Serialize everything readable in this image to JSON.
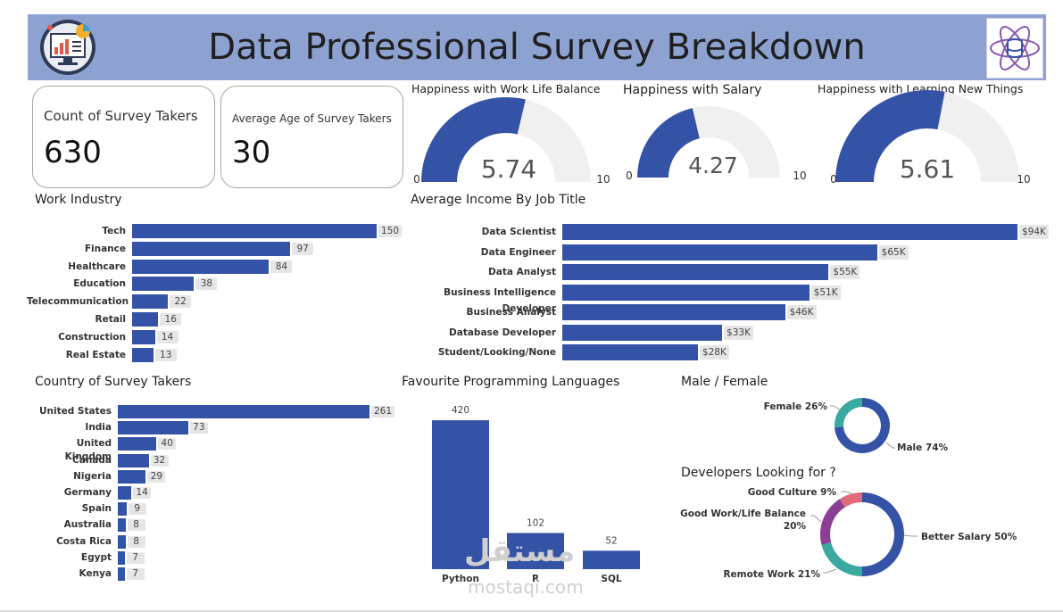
{
  "header": {
    "title": "Data Professional Survey Breakdown"
  },
  "kpis": {
    "count_label": "Count of Survey Takers",
    "count_value": "630",
    "age_label": "Average Age of Survey Takers",
    "age_value": "30"
  },
  "colors": {
    "bar": "#3452a6",
    "gauge_track": "#f0f0f0",
    "donut_teal": "#3aa99f",
    "donut_purple": "#8a3e96",
    "donut_pink": "#e06a7a",
    "header_bg": "#8ea2d2"
  },
  "gauges": [
    {
      "title": "Happiness with Work Life Balance",
      "value": 5.74,
      "value_label": "5.74",
      "min_label": "0",
      "max_label": "10",
      "min": 0,
      "max": 10
    },
    {
      "title": "Happiness with Salary",
      "value": 4.27,
      "value_label": "4.27",
      "min_label": "0",
      "max_label": "10",
      "min": 0,
      "max": 10
    },
    {
      "title": "Happiness with Learning New Things",
      "value": 5.61,
      "value_label": "5.61",
      "min_label": "0",
      "max_label": "10",
      "min": 0,
      "max": 10
    }
  ],
  "watermark": {
    "arabic": "مستقل",
    "latin": "mostaqi.com"
  },
  "chart_data": [
    {
      "id": "industry",
      "type": "bar",
      "orientation": "horizontal",
      "title": "Work Industry",
      "categories": [
        "Tech",
        "Finance",
        "Healthcare",
        "Education",
        "Telecommunication",
        "Retail",
        "Construction",
        "Real Estate"
      ],
      "values": [
        150,
        97,
        84,
        38,
        22,
        16,
        14,
        13
      ],
      "labels": [
        "150",
        "97",
        "84",
        "38",
        "22",
        "16",
        "14",
        "13"
      ],
      "xlim": [
        0,
        150
      ]
    },
    {
      "id": "income",
      "type": "bar",
      "orientation": "horizontal",
      "title": "Average Income By Job Title",
      "categories": [
        "Data Scientist",
        "Data Engineer",
        "Data Analyst",
        "Business Intelligence Developer",
        "Business Analyst",
        "Database Developer",
        "Student/Looking/None"
      ],
      "values": [
        94,
        65,
        55,
        51,
        46,
        33,
        28
      ],
      "labels": [
        "$94K",
        "$65K",
        "$55K",
        "$51K",
        "$46K",
        "$33K",
        "$28K"
      ],
      "xlim": [
        0,
        94
      ]
    },
    {
      "id": "country",
      "type": "bar",
      "orientation": "horizontal",
      "title": "Country of Survey Takers",
      "categories": [
        "United States",
        "India",
        "United Kingdom",
        "Canada",
        "Nigeria",
        "Germany",
        "Spain",
        "Australia",
        "Costa Rica",
        "Egypt",
        "Kenya"
      ],
      "values": [
        261,
        73,
        40,
        32,
        29,
        14,
        9,
        8,
        8,
        7,
        7
      ],
      "labels": [
        "261",
        "73",
        "40",
        "32",
        "29",
        "14",
        "9",
        "8",
        "8",
        "7",
        "7"
      ],
      "xlim": [
        0,
        261
      ]
    },
    {
      "id": "languages",
      "type": "bar",
      "orientation": "vertical",
      "title": "Favourite Programming Languages",
      "categories": [
        "Python",
        "R",
        "SQL"
      ],
      "values": [
        420,
        102,
        52
      ],
      "labels": [
        "420",
        "102",
        "52"
      ],
      "ylim": [
        0,
        420
      ]
    },
    {
      "id": "gender",
      "type": "pie",
      "donut": true,
      "title": "Male / Female",
      "categories": [
        "Male",
        "Female"
      ],
      "values": [
        74,
        26
      ],
      "labels": [
        "Male 74%",
        "Female 26%"
      ]
    },
    {
      "id": "looking_for",
      "type": "pie",
      "donut": true,
      "title": "Developers Looking for ?",
      "categories": [
        "Better Salary",
        "Remote Work",
        "Good Work/Life Balance",
        "Good Culture"
      ],
      "values": [
        50,
        21,
        20,
        9
      ],
      "labels": [
        "Better Salary 50%",
        "Remote Work 21%",
        "Good Work/Life Balance",
        "Good Culture 9%"
      ],
      "label_line2": [
        "",
        "",
        "20%",
        ""
      ]
    }
  ]
}
